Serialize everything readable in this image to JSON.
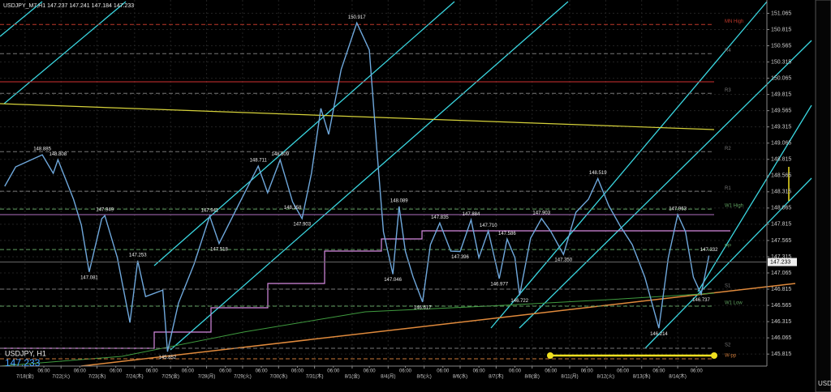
{
  "chart_data": {
    "type": "line",
    "title": "USDJPY_M7,H1  147.237 147.241 147.184 147.233",
    "symbol_label": "USDJPY, H1",
    "current_price_label": "147.233",
    "current_price": 147.233,
    "side_label": "USD",
    "xlim": [
      0,
      490
    ],
    "ylim": [
      145.63,
      151.27
    ],
    "yticks": [
      145.815,
      146.065,
      146.315,
      146.565,
      146.815,
      147.065,
      147.315,
      147.565,
      147.815,
      148.065,
      148.315,
      148.565,
      148.815,
      149.065,
      149.315,
      149.565,
      149.815,
      150.065,
      150.315,
      150.565,
      150.815,
      151.065
    ],
    "xticks": [
      {
        "value": 16,
        "label": "7/18(金)"
      },
      {
        "value": 39,
        "label": "7/22(火)"
      },
      {
        "value": 62,
        "label": "7/23(水)"
      },
      {
        "value": 86,
        "label": "7/24(木)"
      },
      {
        "value": 109,
        "label": "7/25(金)"
      },
      {
        "value": 132,
        "label": "7/28(月)"
      },
      {
        "value": 155,
        "label": "7/29(火)"
      },
      {
        "value": 178,
        "label": "7/30(水)"
      },
      {
        "value": 201,
        "label": "7/31(木)"
      },
      {
        "value": 225,
        "label": "8/1(金)"
      },
      {
        "value": 248,
        "label": "8/4(月)"
      },
      {
        "value": 271,
        "label": "8/5(火)"
      },
      {
        "value": 294,
        "label": "8/6(水)"
      },
      {
        "value": 317,
        "label": "8/7(木)"
      },
      {
        "value": 340,
        "label": "8/8(金)"
      },
      {
        "value": 364,
        "label": "8/11(月)"
      },
      {
        "value": 387,
        "label": "8/12(火)"
      },
      {
        "value": 410,
        "label": "8/13(水)"
      },
      {
        "value": 433,
        "label": "8/14(木)"
      }
    ],
    "time_ticks": [
      {
        "value": 28,
        "label": "06:00"
      },
      {
        "value": 51,
        "label": "06:00"
      },
      {
        "value": 74,
        "label": "06:00"
      },
      {
        "value": 97,
        "label": "06:00"
      },
      {
        "value": 120,
        "label": "06:00"
      },
      {
        "value": 144,
        "label": "06:00"
      },
      {
        "value": 167,
        "label": "06:00"
      },
      {
        "value": 190,
        "label": "06:00"
      },
      {
        "value": 213,
        "label": "06:00"
      },
      {
        "value": 236,
        "label": "06:00"
      },
      {
        "value": 259,
        "label": "06:00"
      },
      {
        "value": 283,
        "label": "06:00"
      },
      {
        "value": 306,
        "label": "06:00"
      },
      {
        "value": 329,
        "label": "06:00"
      },
      {
        "value": 352,
        "label": "06:00"
      },
      {
        "value": 375,
        "label": "06:00"
      },
      {
        "value": 398,
        "label": "06:00"
      },
      {
        "value": 421,
        "label": "06:00"
      },
      {
        "value": 445,
        "label": "06:00"
      }
    ],
    "grid": true,
    "series": [
      {
        "name": "USDJPY",
        "color": "#6fa8dc",
        "x": [
          3,
          10,
          27,
          34,
          37,
          47,
          52,
          57,
          65,
          67,
          75,
          83,
          88,
          93,
          104,
          107,
          114,
          124,
          134,
          140,
          150,
          165,
          171,
          179,
          187,
          193,
          199,
          205,
          210,
          218,
          228,
          236,
          241,
          245,
          251,
          255,
          259,
          264,
          270,
          275,
          281,
          288,
          294,
          301,
          306,
          312,
          319,
          324,
          329,
          332,
          339,
          346,
          352,
          360,
          368,
          376,
          382,
          389,
          396,
          404,
          412,
          421,
          427,
          433,
          438,
          443,
          448,
          453
        ],
        "values": [
          148.4,
          148.7,
          148.885,
          148.6,
          148.808,
          148.2,
          147.8,
          147.081,
          147.9,
          147.949,
          147.3,
          146.3,
          147.253,
          146.7,
          146.8,
          145.852,
          146.6,
          147.2,
          147.941,
          147.518,
          148.0,
          148.711,
          148.3,
          148.809,
          148.158,
          147.903,
          148.6,
          149.6,
          149.2,
          150.2,
          150.917,
          150.5,
          148.9,
          147.7,
          147.046,
          148.089,
          147.4,
          147.0,
          146.617,
          147.5,
          147.835,
          147.4,
          147.396,
          147.884,
          147.3,
          147.71,
          146.977,
          147.586,
          147.3,
          146.722,
          147.6,
          147.903,
          147.7,
          147.35,
          148.0,
          148.2,
          148.519,
          148.1,
          147.8,
          147.5,
          147.0,
          146.214,
          147.3,
          147.963,
          147.7,
          147.0,
          146.737,
          147.332
        ]
      }
    ],
    "annotations": [
      {
        "x": 27,
        "value": 148.885,
        "label": "148.885"
      },
      {
        "x": 37,
        "value": 148.808,
        "label": "148.808"
      },
      {
        "x": 57,
        "value": 147.081,
        "label": "147.081"
      },
      {
        "x": 67,
        "value": 147.949,
        "label": "147.949"
      },
      {
        "x": 88,
        "value": 147.253,
        "label": "147.253"
      },
      {
        "x": 107,
        "value": 145.852,
        "label": "145.852"
      },
      {
        "x": 134,
        "value": 147.941,
        "label": "147.941"
      },
      {
        "x": 140,
        "value": 147.518,
        "label": "147.518"
      },
      {
        "x": 165,
        "value": 148.711,
        "label": "148.711"
      },
      {
        "x": 179,
        "value": 148.809,
        "label": "148.809"
      },
      {
        "x": 187,
        "value": 148.158,
        "label": "148.158"
      },
      {
        "x": 193,
        "value": 147.903,
        "label": "147.903"
      },
      {
        "x": 228,
        "value": 150.917,
        "label": "150.917"
      },
      {
        "x": 251,
        "value": 147.046,
        "label": "147.046"
      },
      {
        "x": 255,
        "value": 148.089,
        "label": "148.089"
      },
      {
        "x": 270,
        "value": 146.617,
        "label": "146.617"
      },
      {
        "x": 281,
        "value": 147.835,
        "label": "147.835"
      },
      {
        "x": 294,
        "value": 147.396,
        "label": "147.396"
      },
      {
        "x": 301,
        "value": 147.884,
        "label": "147.884"
      },
      {
        "x": 312,
        "value": 147.71,
        "label": "147.710"
      },
      {
        "x": 319,
        "value": 146.977,
        "label": "146.977"
      },
      {
        "x": 324,
        "value": 147.586,
        "label": "147.586"
      },
      {
        "x": 332,
        "value": 146.722,
        "label": "146.722"
      },
      {
        "x": 346,
        "value": 147.903,
        "label": "147.903"
      },
      {
        "x": 360,
        "value": 147.35,
        "label": "147.350"
      },
      {
        "x": 382,
        "value": 148.519,
        "label": "148.519"
      },
      {
        "x": 421,
        "value": 146.214,
        "label": "146.214"
      },
      {
        "x": 433,
        "value": 147.963,
        "label": "147.963"
      },
      {
        "x": 448,
        "value": 146.737,
        "label": "146.737"
      },
      {
        "x": 453,
        "value": 147.332,
        "label": "147.332"
      }
    ],
    "levels": [
      {
        "name": "MN High",
        "value": 150.892,
        "color": "#c0392b"
      },
      {
        "name": "R4",
        "value": 150.443,
        "color": "#777777"
      },
      {
        "name": "R3",
        "value": 149.832,
        "color": "#777777"
      },
      {
        "name": "R2",
        "value": 148.934,
        "color": "#777777"
      },
      {
        "name": "R1",
        "value": 148.323,
        "color": "#777777"
      },
      {
        "name": "W1 High",
        "value": 148.049,
        "color": "#5fa05f"
      },
      {
        "name": "PP",
        "value": 147.426,
        "color": "#5fa05f"
      },
      {
        "name": "S1",
        "value": 146.815,
        "color": "#777777"
      },
      {
        "name": "W1 Low",
        "value": 146.553,
        "color": "#5fa05f"
      },
      {
        "name": "S2",
        "value": 145.905,
        "color": "#777777"
      },
      {
        "name": "W-pp",
        "value": 145.743,
        "color": "#cc7a3a"
      }
    ]
  }
}
